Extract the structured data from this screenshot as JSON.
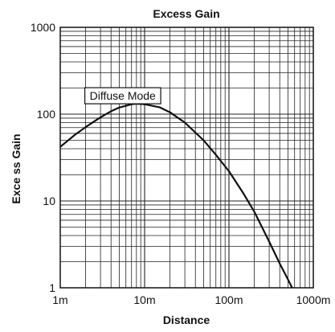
{
  "chart_data": {
    "type": "line",
    "title": "Excess Gain",
    "xlabel": "Distance",
    "ylabel": "Exce ss Gain",
    "x_scale": "log",
    "y_scale": "log",
    "xlim": [
      1,
      1000
    ],
    "ylim": [
      1,
      1000
    ],
    "x_ticks": [
      {
        "value": 1,
        "label": "1m"
      },
      {
        "value": 10,
        "label": "10m"
      },
      {
        "value": 100,
        "label": "100m"
      },
      {
        "value": 1000,
        "label": "1000m"
      }
    ],
    "y_ticks": [
      {
        "value": 1,
        "label": "1"
      },
      {
        "value": 10,
        "label": "10"
      },
      {
        "value": 100,
        "label": "100"
      },
      {
        "value": 1000,
        "label": "1000"
      }
    ],
    "grid": true,
    "series": [
      {
        "name": "Diffuse Mode",
        "color": "#111111",
        "x": [
          1,
          1.5,
          2,
          3,
          4,
          5,
          7,
          8,
          10,
          15,
          20,
          30,
          50,
          70,
          100,
          150,
          200,
          300,
          400,
          500,
          560
        ],
        "y": [
          42,
          58,
          71,
          92,
          108,
          119,
          130,
          132,
          130,
          120,
          105,
          80,
          50,
          34,
          22,
          12,
          7.5,
          3.4,
          1.9,
          1.25,
          1.0
        ]
      }
    ],
    "annotations": [
      {
        "text": "Diffuse Mode",
        "x": 5.5,
        "y": 163
      }
    ]
  }
}
